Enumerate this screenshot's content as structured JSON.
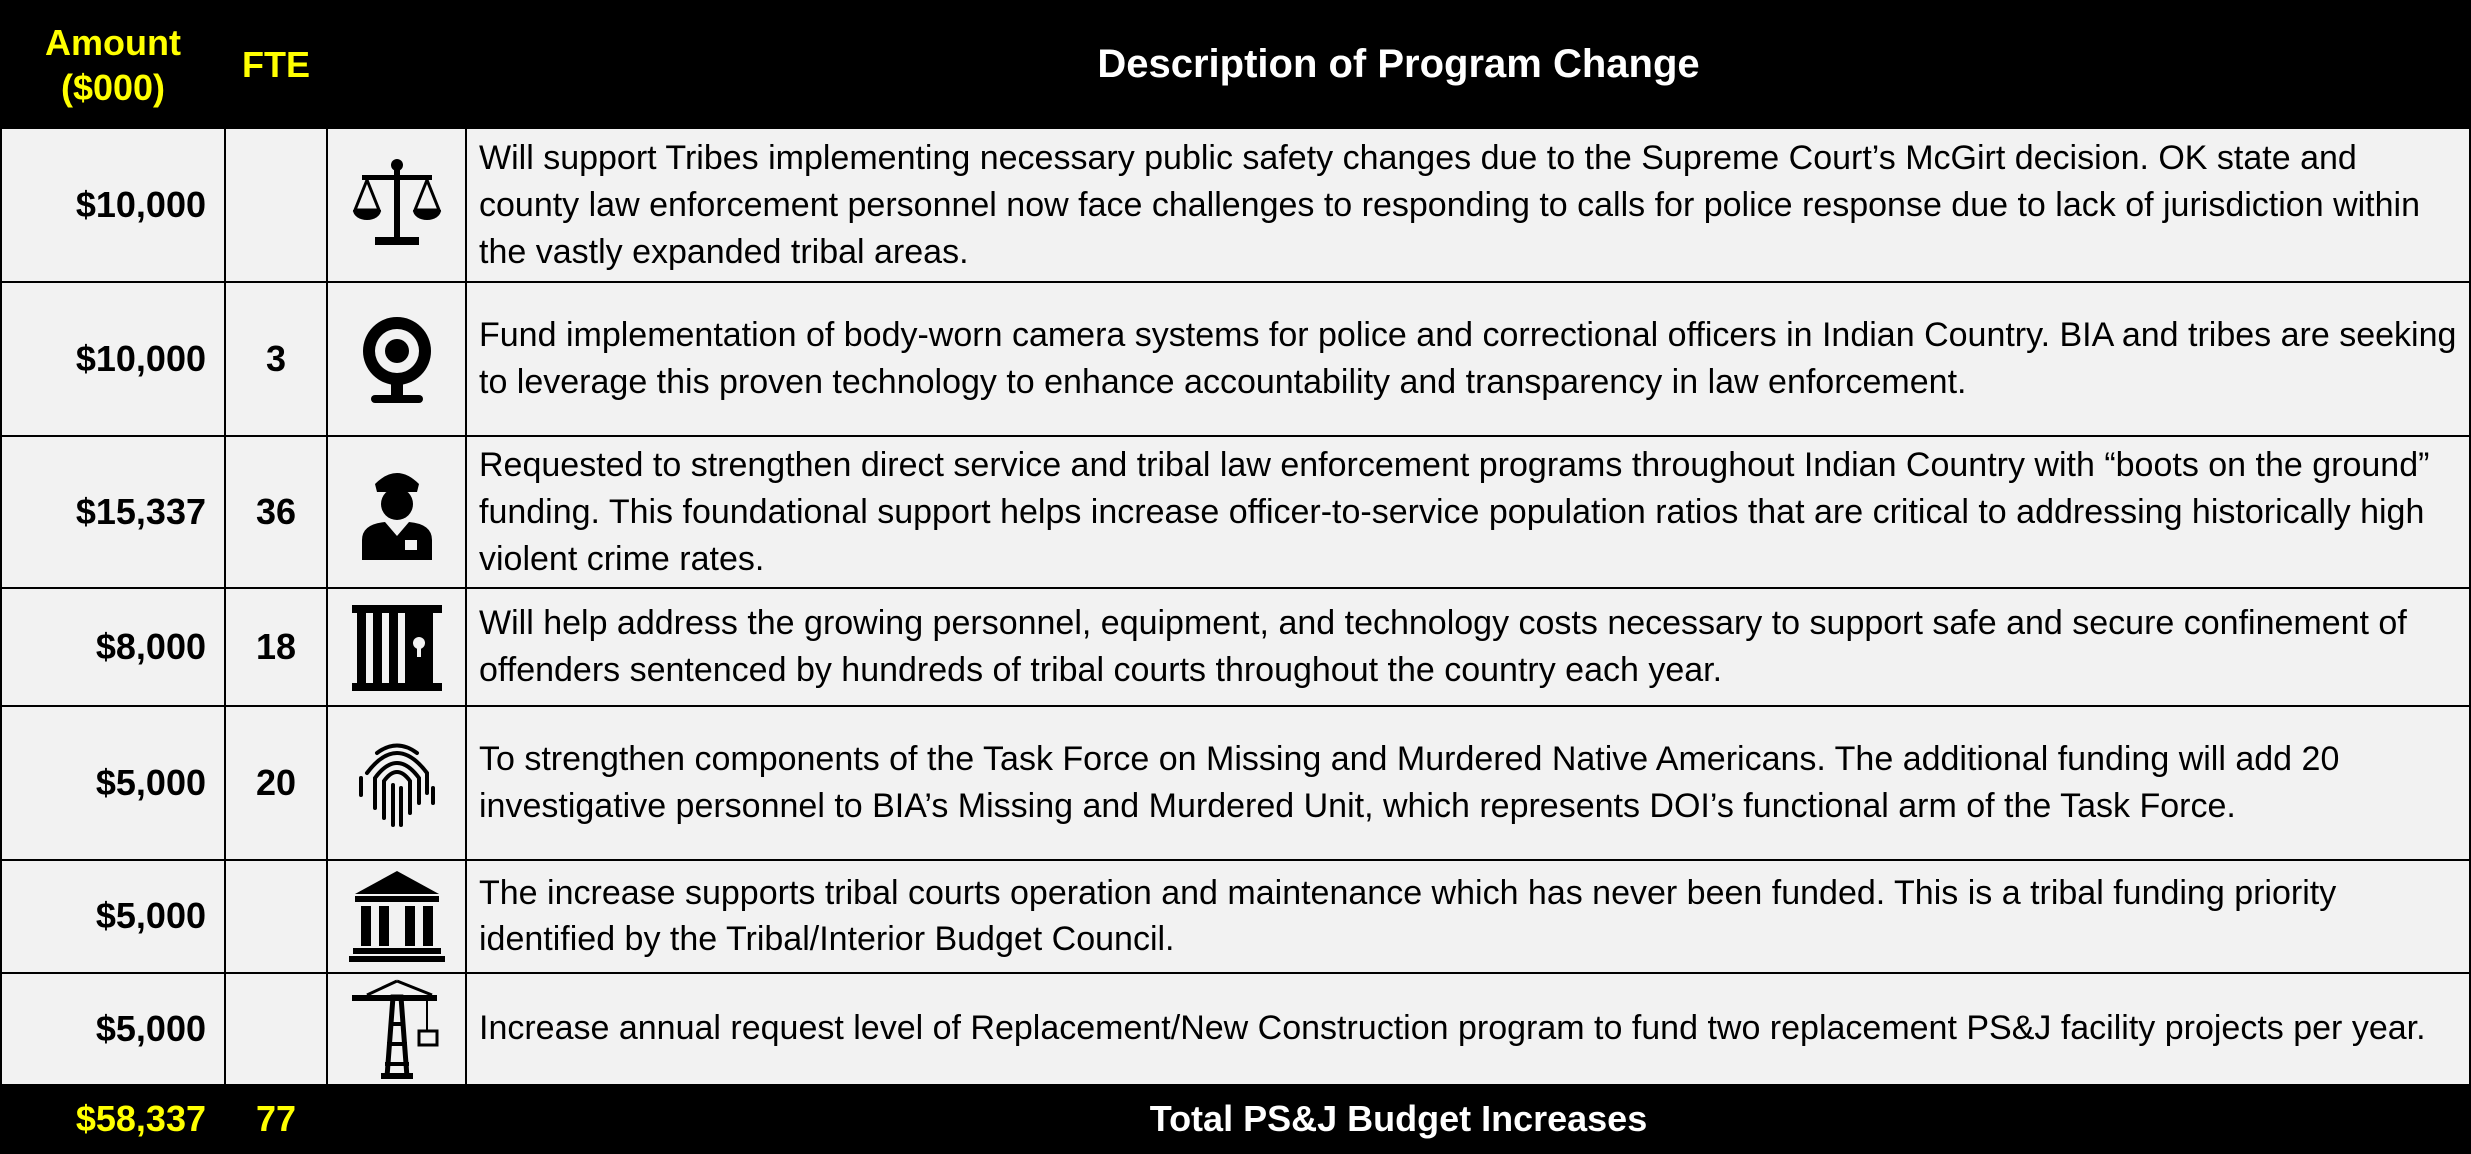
{
  "header": {
    "amount": "Amount ($000)",
    "fte": "FTE",
    "description": "Description of Program Change"
  },
  "rows": [
    {
      "amount": "$10,000",
      "fte": null,
      "description": "Will support Tribes implementing necessary public safety changes due to the Supreme Court’s McGirt decision. OK state and county law enforcement personnel now face challenges to responding to calls for police response due to lack of jurisdiction within the vastly expanded tribal areas."
    },
    {
      "amount": "$10,000",
      "fte": "3",
      "description": "Fund implementation of body-worn camera systems for police and correctional officers in Indian Country. BIA and tribes are seeking to leverage this proven technology to enhance accountability and transparency in law enforcement."
    },
    {
      "amount": "$15,337",
      "fte": "36",
      "description": "Requested to strengthen direct service and tribal law enforcement programs throughout Indian Country with “boots on the ground” funding. This foundational support helps increase officer-to-service population ratios that are critical to addressing historically high violent crime rates."
    },
    {
      "amount": "$8,000",
      "fte": "18",
      "description": "Will help address the growing personnel, equipment, and technology costs necessary to support safe and secure confinement of offenders sentenced by hundreds of tribal courts throughout the country each year."
    },
    {
      "amount": "$5,000",
      "fte": "20",
      "description": "To strengthen components of the Task Force on Missing and Murdered Native Americans. The additional funding will add 20 investigative personnel to BIA’s Missing and Murdered Unit, which represents DOI’s functional arm of the Task Force."
    },
    {
      "amount": "$5,000",
      "fte": null,
      "description": "The increase supports tribal courts operation and maintenance which has never been funded.  This is a tribal funding priority identified by the Tribal/Interior Budget Council."
    },
    {
      "amount": "$5,000",
      "fte": null,
      "description": "Increase annual request level of Replacement/New Construction program to fund two replacement PS&J facility projects per year."
    }
  ],
  "total": {
    "amount": "$58,337",
    "fte": "77",
    "label": "Total PS&J Budget Increases"
  }
}
